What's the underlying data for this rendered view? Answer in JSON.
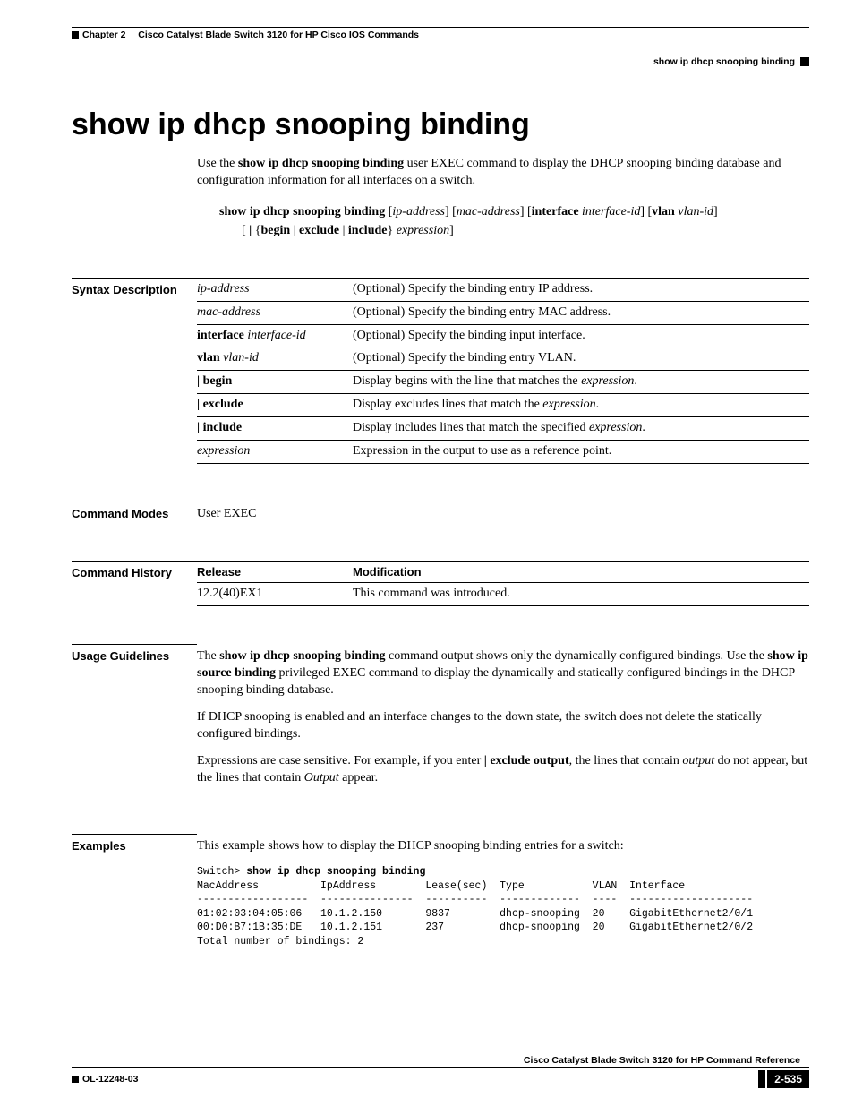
{
  "header": {
    "chapter_label": "Chapter 2",
    "chapter_title": "Cisco Catalyst Blade Switch 3120 for HP Cisco IOS Commands",
    "command_header": "show ip dhcp snooping binding"
  },
  "title": "show ip dhcp snooping binding",
  "intro": {
    "lead_prefix": "Use the ",
    "lead_cmd": "show ip dhcp snooping binding",
    "lead_suffix": " user EXEC command to display the DHCP snooping binding database and configuration information for all interfaces on a switch."
  },
  "syntax": {
    "line1_cmd": "show ip dhcp snooping binding",
    "opt_ip": "ip-address",
    "opt_mac": "mac-address",
    "kw_interface": "interface",
    "opt_ifid": "interface-id",
    "kw_vlan": "vlan",
    "opt_vlanid": "vlan-id",
    "kw_begin": "begin",
    "kw_exclude": "exclude",
    "kw_include": "include",
    "opt_expr": "expression"
  },
  "sections": {
    "syntax_desc_label": "Syntax Description",
    "params": [
      {
        "term_i": "ip-address",
        "desc": "(Optional) Specify the binding entry IP address."
      },
      {
        "term_i": "mac-address",
        "desc": "(Optional) Specify the binding entry MAC address."
      },
      {
        "term_b": "interface",
        "term_i": "interface-id",
        "desc": "(Optional) Specify the binding input interface."
      },
      {
        "term_b": "vlan",
        "term_i": "vlan-id",
        "desc": "(Optional) Specify the binding entry VLAN."
      },
      {
        "term_pipe_b": "begin",
        "desc_pre": "Display begins with the line that matches the ",
        "desc_i": "expression",
        "desc_post": "."
      },
      {
        "term_pipe_b": "exclude",
        "desc_pre": "Display excludes lines that match the ",
        "desc_i": "expression",
        "desc_post": "."
      },
      {
        "term_pipe_b": "include",
        "desc_pre": "Display includes lines that match the specified ",
        "desc_i": "expression",
        "desc_post": "."
      },
      {
        "term_i": "expression",
        "desc": "Expression in the output to use as a reference point."
      }
    ],
    "cmd_modes_label": "Command Modes",
    "cmd_modes_value": "User EXEC",
    "cmd_history_label": "Command History",
    "history_cols": {
      "release": "Release",
      "modification": "Modification"
    },
    "history_rows": [
      {
        "release": "12.2(40)EX1",
        "modification": "This command was introduced."
      }
    ],
    "usage_label": "Usage Guidelines",
    "usage_p1_pre": "The ",
    "usage_p1_cmd1": "show ip dhcp snooping binding",
    "usage_p1_mid": " command output shows only the dynamically configured bindings. Use the ",
    "usage_p1_cmd2": "show ip source binding",
    "usage_p1_post": " privileged EXEC command to display the dynamically and statically configured bindings in the DHCP snooping binding database.",
    "usage_p2": "If DHCP snooping is enabled and an interface changes to the down state, the switch does not delete the statically configured bindings.",
    "usage_p3_pre": "Expressions are case sensitive. For example, if you enter ",
    "usage_p3_cmd": "| exclude output",
    "usage_p3_mid": ", the lines that contain ",
    "usage_p3_i1": "output",
    "usage_p3_mid2": " do not appear, but the lines that contain ",
    "usage_p3_i2": "Output",
    "usage_p3_post": " appear.",
    "examples_label": "Examples",
    "examples_intro": "This example shows how to display the DHCP snooping binding entries for a switch:",
    "example_prompt": "Switch> ",
    "example_cmd": "show ip dhcp snooping binding",
    "example_output": "MacAddress          IpAddress        Lease(sec)  Type           VLAN  Interface\n------------------  ---------------  ----------  -------------  ----  --------------------\n01:02:03:04:05:06   10.1.2.150       9837        dhcp-snooping  20    GigabitEthernet2/0/1\n00:D0:B7:1B:35:DE   10.1.2.151       237         dhcp-snooping  20    GigabitEthernet2/0/2\nTotal number of bindings: 2"
  },
  "footer": {
    "book_title": "Cisco Catalyst Blade Switch 3120 for HP Command Reference",
    "doc_number": "OL-12248-03",
    "page_number": "2-535"
  }
}
